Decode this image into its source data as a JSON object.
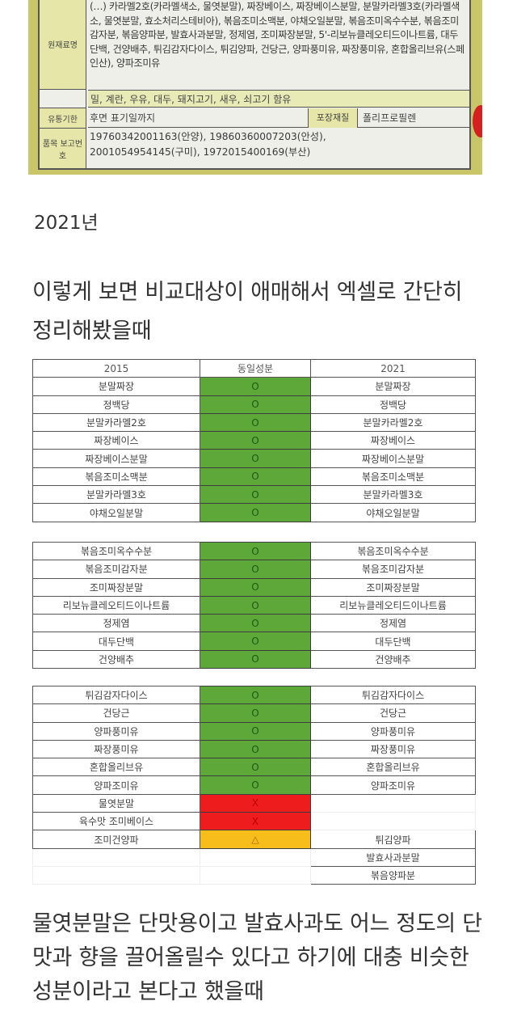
{
  "photo": {
    "label_ingredients": "원재료명",
    "ingredients_text": "(…) 카라멜2호(카라멜색소, 물엿분말), 짜장베이스, 짜장베이스분말, 분말카라멜3호(카라멜색소, 물엿분말, 효소처리스테비아), 볶음조미소맥분, 야채오일분말, 볶음조미옥수수분, 볶음조미감자분, 볶음양파분, 발효사과분말, 정제염, 조미짜장분말, 5'-리보뉴클레오티드이나트륨, 대두단백, 건양배추, 튀김감자다이스, 튀김양파, 건당근, 양파풍미유, 짜장풍미유, 혼합올리브유(스페인산), 양파조미유",
    "allergy": "밀, 계란, 우유, 대두, 돼지고기, 새우, 쇠고기 함유",
    "label_expiry": "유통기한",
    "expiry": "후면 표기일까지",
    "label_packaging": "포장재질",
    "packaging": "폴리프로필렌",
    "label_report": "품목 보고번호",
    "report_line1": "19760342001163(안양), 19860360007203(안성),",
    "report_line2": "20010549541​45(구미), 1972015400169(부산)"
  },
  "year_heading": "2021년",
  "intro_text": "이렇게 보면 비교대상이 애매해서 엑셀로 간단히 정리해봤을때",
  "table": {
    "headers": [
      "2015",
      "동일성분",
      "2021"
    ],
    "groups": [
      [
        [
          "분말짜장",
          "O",
          "분말짜장",
          "g"
        ],
        [
          "정백당",
          "O",
          "정백당",
          "g"
        ],
        [
          "분말카라멜2호",
          "O",
          "분말카라멜2호",
          "g"
        ],
        [
          "짜장베이스",
          "O",
          "짜장베이스",
          "g"
        ],
        [
          "짜장베이스분말",
          "O",
          "짜장베이스분말",
          "g"
        ],
        [
          "볶음조미소맥분",
          "O",
          "볶음조미소맥분",
          "g"
        ],
        [
          "분말카라멜3호",
          "O",
          "분말카라멜3호",
          "g"
        ],
        [
          "야채오일분말",
          "O",
          "야채오일분말",
          "g"
        ]
      ],
      [
        [
          "볶음조미옥수수분",
          "O",
          "볶음조미옥수수분",
          "g"
        ],
        [
          "볶음조미감자분",
          "O",
          "볶음조미감자분",
          "g"
        ],
        [
          "조미짜장분말",
          "O",
          "조미짜장분말",
          "g"
        ],
        [
          "리보뉴클레오티드이나트륨",
          "O",
          "리보뉴클레오티드이나트륨",
          "g"
        ],
        [
          "정제염",
          "O",
          "정제염",
          "g"
        ],
        [
          "대두단백",
          "O",
          "대두단백",
          "g"
        ],
        [
          "건양배추",
          "O",
          "건양배추",
          "g"
        ]
      ],
      [
        [
          "튀김감자다이스",
          "O",
          "튀김감자다이스",
          "g"
        ],
        [
          "건당근",
          "O",
          "건당근",
          "g"
        ],
        [
          "양파풍미유",
          "O",
          "양파풍미유",
          "g"
        ],
        [
          "짜장풍미유",
          "O",
          "짜장풍미유",
          "g"
        ],
        [
          "혼합올리브유",
          "O",
          "혼합올리브유",
          "g"
        ],
        [
          "양파조미유",
          "O",
          "양파조미유",
          "g"
        ],
        [
          "물엿분말",
          "X",
          "",
          "r"
        ],
        [
          "육수맛 조미베이스",
          "X",
          "",
          "r"
        ],
        [
          "조미건양파",
          "△",
          "튀김양파",
          "y"
        ],
        [
          "",
          "",
          "발효사과분말",
          "n"
        ],
        [
          "",
          "",
          "볶음양파분",
          "n"
        ]
      ]
    ],
    "colors": {
      "same": "#5ea83a",
      "missing": "#ee1c1c",
      "similar": "#f7bd1b"
    }
  },
  "outro_text": "물엿분말은 단맛용이고 발효사과도 어느 정도의 단맛과 향을 끌어올릴수 있다고 하기에 대충 비슷한 성분이라고 본다고 했을때"
}
